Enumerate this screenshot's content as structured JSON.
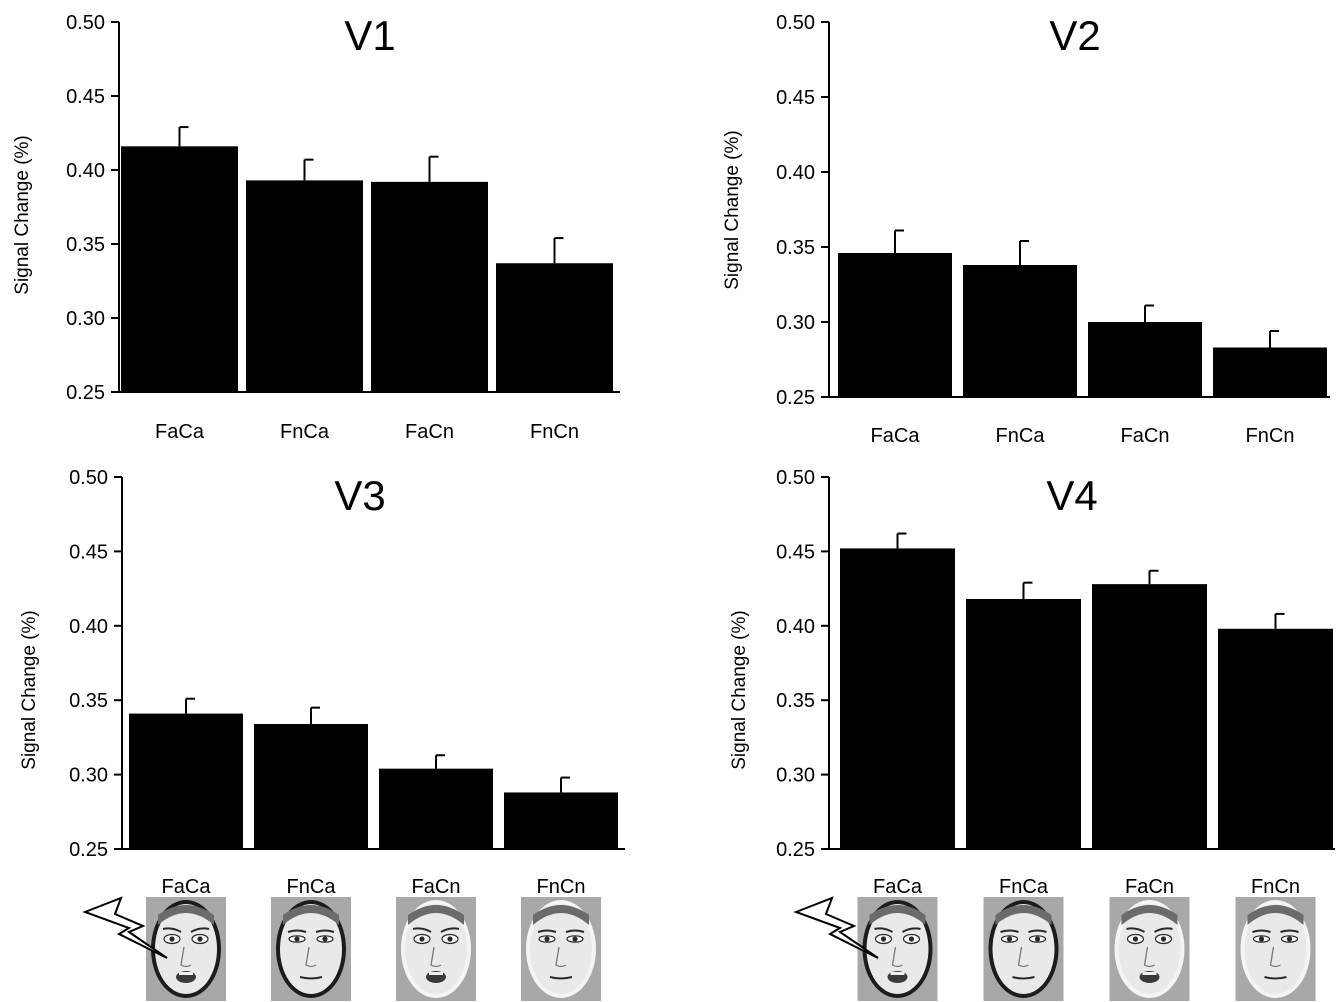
{
  "colors": {
    "bar": "#000000",
    "face_bg": "#a8a8a8",
    "face_skin": "#e9e9e9",
    "face_dark": "#2a2a2a"
  },
  "icons": {
    "bolt": "lightning-bolt-icon",
    "face": "face-stimulus-icon"
  },
  "chart_data": [
    {
      "type": "bar",
      "title": "V1",
      "xlabel": "",
      "ylabel": "Signal Change (%)",
      "ylim": [
        0.25,
        0.5
      ],
      "yticks": [
        "0.50",
        "0.45",
        "0.40",
        "0.35",
        "0.30",
        "0.25"
      ],
      "categories": [
        "FaCa",
        "FnCa",
        "FaCn",
        "FnCn"
      ],
      "values": [
        0.416,
        0.393,
        0.392,
        0.337
      ],
      "errors": [
        0.013,
        0.014,
        0.017,
        0.017
      ],
      "grid": false
    },
    {
      "type": "bar",
      "title": "V2",
      "xlabel": "",
      "ylabel": "Signal Change (%)",
      "ylim": [
        0.25,
        0.5
      ],
      "yticks": [
        "0.50",
        "0.45",
        "0.40",
        "0.35",
        "0.30",
        "0.25"
      ],
      "categories": [
        "FaCa",
        "FnCa",
        "FaCn",
        "FnCn"
      ],
      "values": [
        0.346,
        0.338,
        0.3,
        0.283
      ],
      "errors": [
        0.015,
        0.016,
        0.011,
        0.011
      ],
      "grid": false
    },
    {
      "type": "bar",
      "title": "V3",
      "xlabel": "",
      "ylabel": "Signal Change (%)",
      "ylim": [
        0.25,
        0.5
      ],
      "yticks": [
        "0.50",
        "0.45",
        "0.40",
        "0.35",
        "0.30",
        "0.25"
      ],
      "categories": [
        "FaCa",
        "FnCa",
        "FaCn",
        "FnCn"
      ],
      "values": [
        0.341,
        0.334,
        0.304,
        0.288
      ],
      "errors": [
        0.01,
        0.011,
        0.009,
        0.01
      ],
      "grid": false
    },
    {
      "type": "bar",
      "title": "V4",
      "xlabel": "",
      "ylabel": "Signal Change (%)",
      "ylim": [
        0.25,
        0.5
      ],
      "yticks": [
        "0.50",
        "0.45",
        "0.40",
        "0.35",
        "0.30",
        "0.25"
      ],
      "categories": [
        "FaCa",
        "FnCa",
        "FaCn",
        "FnCn"
      ],
      "values": [
        0.452,
        0.418,
        0.428,
        0.398
      ],
      "errors": [
        0.01,
        0.011,
        0.009,
        0.01
      ],
      "grid": false
    }
  ]
}
